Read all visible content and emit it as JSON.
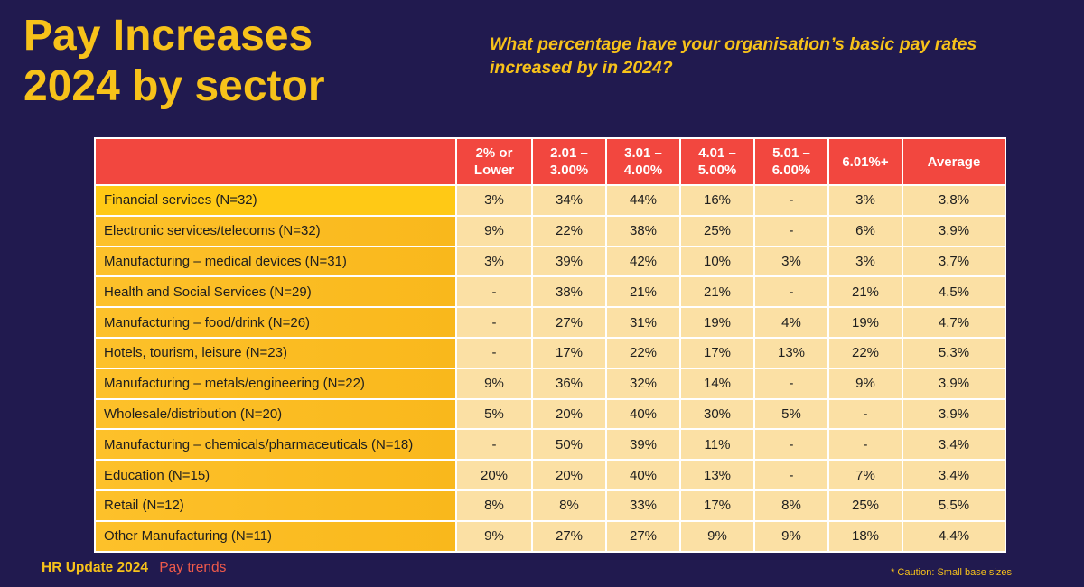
{
  "slide": {
    "title_line1": "Pay Increases",
    "title_line2": "2024 by sector",
    "subtitle": "What percentage have your organisation’s basic pay rates increased by in 2024?",
    "footer_brand": "HR Update 2024",
    "footer_section": "Pay trends",
    "caution": "* Caution: Small base sizes"
  },
  "colors": {
    "background": "#211a4f",
    "accent_yellow": "#f7c21a",
    "header_red": "#f2473f",
    "cell_cream": "#fbe0a4",
    "sector_orange": "#f9b81c"
  },
  "chart_data": {
    "type": "table",
    "title": "Pay Increases 2024 by sector",
    "subtitle": "What percentage have your organisation’s basic pay rates increased by in 2024?",
    "columns": [
      "",
      "2% or\nLower",
      "2.01 –\n3.00%",
      "3.01 –\n4.00%",
      "4.01 –\n5.00%",
      "5.01 –\n6.00%",
      "6.01%+",
      "Average"
    ],
    "rows": [
      [
        "Financial services (N=32)",
        "3%",
        "34%",
        "44%",
        "16%",
        "-",
        "3%",
        "3.8%"
      ],
      [
        "Electronic services/telecoms (N=32)",
        "9%",
        "22%",
        "38%",
        "25%",
        "-",
        "6%",
        "3.9%"
      ],
      [
        "Manufacturing – medical devices (N=31)",
        "3%",
        "39%",
        "42%",
        "10%",
        "3%",
        "3%",
        "3.7%"
      ],
      [
        "Health and Social Services (N=29)",
        "-",
        "38%",
        "21%",
        "21%",
        "-",
        "21%",
        "4.5%"
      ],
      [
        "Manufacturing – food/drink (N=26)",
        "-",
        "27%",
        "31%",
        "19%",
        "4%",
        "19%",
        "4.7%"
      ],
      [
        "Hotels, tourism, leisure (N=23)",
        "-",
        "17%",
        "22%",
        "17%",
        "13%",
        "22%",
        "5.3%"
      ],
      [
        "Manufacturing – metals/engineering (N=22)",
        "9%",
        "36%",
        "32%",
        "14%",
        "-",
        "9%",
        "3.9%"
      ],
      [
        "Wholesale/distribution (N=20)",
        "5%",
        "20%",
        "40%",
        "30%",
        "5%",
        "-",
        "3.9%"
      ],
      [
        "Manufacturing – chemicals/pharmaceuticals (N=18)",
        "-",
        "50%",
        "39%",
        "11%",
        "-",
        "-",
        "3.4%"
      ],
      [
        "Education (N=15)",
        "20%",
        "20%",
        "40%",
        "13%",
        "-",
        "7%",
        "3.4%"
      ],
      [
        "Retail (N=12)",
        "8%",
        "8%",
        "33%",
        "17%",
        "8%",
        "25%",
        "5.5%"
      ],
      [
        "Other Manufacturing (N=11)",
        "9%",
        "27%",
        "27%",
        "9%",
        "9%",
        "18%",
        "4.4%"
      ]
    ]
  }
}
